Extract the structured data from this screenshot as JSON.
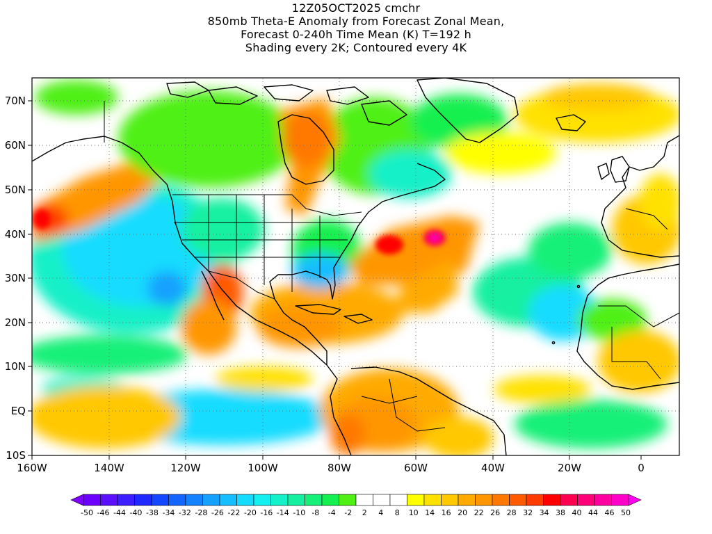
{
  "title": {
    "line1": "12Z05OCT2025 cmchr",
    "line2": "850mb Theta-E Anomaly from Forecast Zonal Mean,",
    "line3": "Forecast 0-240h Time Mean (K) T=192 h",
    "line4": "Shading every 2K; Contoured every 4K"
  },
  "map": {
    "lat_labels": [
      "70N",
      "60N",
      "50N",
      "40N",
      "30N",
      "20N",
      "10N",
      "EQ",
      "10S"
    ],
    "lon_labels": [
      "160W",
      "140W",
      "120W",
      "100W",
      "80W",
      "60W",
      "40W",
      "20W",
      "0"
    ],
    "background_color": "#ffffff",
    "land_outline_color": "#000000"
  },
  "colorbar": {
    "labels": [
      "-50",
      "-46",
      "-44",
      "-40",
      "-38",
      "-34",
      "-32",
      "-28",
      "-26",
      "-22",
      "-20",
      "-16",
      "-14",
      "-10",
      "-8",
      "-4",
      "-2",
      "2",
      "4",
      "8",
      "10",
      "14",
      "16",
      "20",
      "22",
      "26",
      "28",
      "32",
      "34",
      "38",
      "40",
      "44",
      "46",
      "50"
    ],
    "colors": [
      "#7f00ff",
      "#6b00ff",
      "#5a10ff",
      "#3c1eff",
      "#1e28ff",
      "#1446ff",
      "#1464ff",
      "#1482ff",
      "#14a0ff",
      "#14beff",
      "#14dcff",
      "#14f0f0",
      "#14f0c8",
      "#14f0a0",
      "#14f078",
      "#14f050",
      "#50f014",
      "#ffffff",
      "#ffffff",
      "#ffffff",
      "#ffff00",
      "#ffe100",
      "#ffc800",
      "#ffaa00",
      "#ff9600",
      "#ff7800",
      "#ff5a00",
      "#ff3c00",
      "#ff0000",
      "#ff0050",
      "#ff0078",
      "#ff00a0",
      "#ff00c8",
      "#ff00f0"
    ]
  }
}
